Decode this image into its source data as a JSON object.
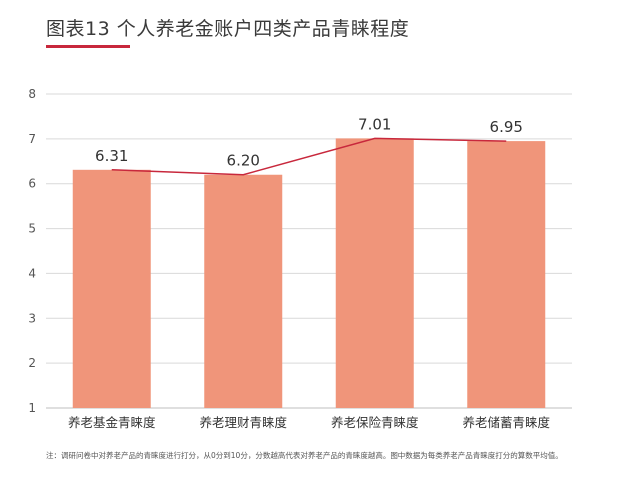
{
  "title": "图表13 个人养老金账户四类产品青睐程度",
  "note": "注：调研问卷中对养老产品的青睐度进行打分，从0分到10分，分数越高代表对养老产品的青睐度越高。图中数据为每类养老产品青睐度打分的算数平均值。",
  "colors": {
    "bar": "#f0957a",
    "line": "#c8283c",
    "accent": "#c8283c",
    "grid": "#d9d9d9",
    "axis": "#bfbfbf"
  },
  "chart_data": {
    "type": "bar",
    "title": "图表13 个人养老金账户四类产品青睐程度",
    "categories": [
      "养老基金青睐度",
      "养老理财青睐度",
      "养老保险青睐度",
      "养老储蓄青睐度"
    ],
    "values": [
      6.31,
      6.2,
      7.01,
      6.95
    ],
    "value_labels": [
      "6.31",
      "6.20",
      "7.01",
      "6.95"
    ],
    "overlay_line": true,
    "ylim": [
      1,
      8
    ],
    "yticks": [
      "1",
      "2",
      "3",
      "4",
      "5",
      "6",
      "7",
      "8"
    ],
    "xlabel": "",
    "ylabel": "",
    "grid": true
  }
}
